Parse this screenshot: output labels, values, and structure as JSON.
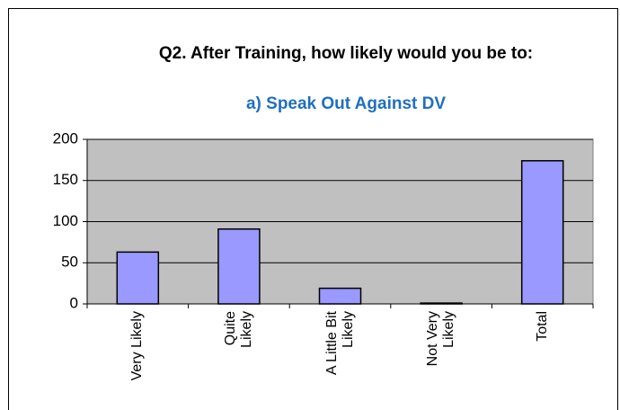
{
  "chart_data": {
    "type": "bar",
    "title": "Q2. After Training, how likely would you be to:",
    "subtitle": "a) Speak Out Against DV",
    "categories": [
      "Very Likely",
      "Quite\nLikely",
      "A Little Bit\nLikely",
      "Not Very\nLikely",
      "Total"
    ],
    "values": [
      63,
      91,
      19,
      1,
      174
    ],
    "color": "#9999ff",
    "ylim": [
      0,
      200
    ],
    "yticks": [
      0,
      50,
      100,
      150,
      200
    ],
    "grid": true
  }
}
